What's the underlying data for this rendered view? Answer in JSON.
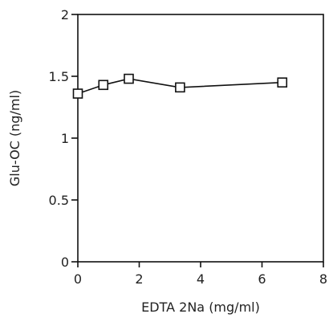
{
  "chart_data": {
    "type": "line",
    "title": "",
    "xlabel": "EDTA 2Na (mg/ml)",
    "ylabel": "Glu-OC (ng/ml)",
    "xlim": [
      0,
      8
    ],
    "ylim": [
      0,
      2
    ],
    "xticks": [
      {
        "value": 0,
        "label": "0"
      },
      {
        "value": 2,
        "label": "2"
      },
      {
        "value": 4,
        "label": "4"
      },
      {
        "value": 6,
        "label": "6"
      },
      {
        "value": 8,
        "label": "8"
      }
    ],
    "yticks": [
      {
        "value": 0,
        "label": "0"
      },
      {
        "value": 0.5,
        "label": "0.5"
      },
      {
        "value": 1,
        "label": "1"
      },
      {
        "value": 1.5,
        "label": "1.5"
      },
      {
        "value": 2,
        "label": "2"
      }
    ],
    "grid": false,
    "legend": "none",
    "marker": "open-square",
    "series": [
      {
        "x": [
          0,
          0.83,
          1.66,
          3.33,
          6.66
        ],
        "y": [
          1.36,
          1.43,
          1.48,
          1.41,
          1.45
        ]
      }
    ]
  }
}
